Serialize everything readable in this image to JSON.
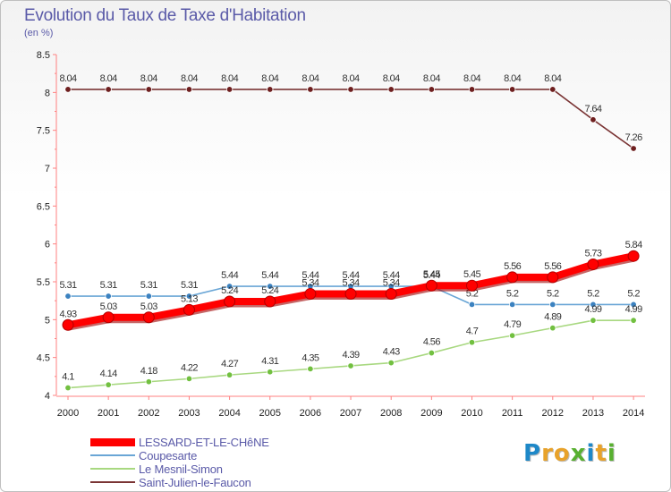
{
  "title": "Evolution du Taux de Taxe d'Habitation",
  "subtitle": "(en %)",
  "logo": {
    "letters": [
      "P",
      "r",
      "o",
      "x",
      "i",
      "t",
      "i"
    ],
    "colors": [
      "#1e88c8",
      "#e8a22a",
      "#e8a22a",
      "#58b030",
      "#1e88c8",
      "#e8a22a",
      "#58b030"
    ]
  },
  "chart_data": {
    "type": "line",
    "x": [
      "2000",
      "2001",
      "2002",
      "2003",
      "2004",
      "2005",
      "2006",
      "2007",
      "2008",
      "2009",
      "2010",
      "2011",
      "2012",
      "2013",
      "2014"
    ],
    "ylim": [
      4,
      8.5
    ],
    "yticks": [
      "4",
      "4.5",
      "5",
      "5.5",
      "6",
      "6.5",
      "7",
      "7.5",
      "8",
      "8.5"
    ],
    "grid": false,
    "legend_position": "bottom-left",
    "series": [
      {
        "name": "Saint-Julien-le-Faucon",
        "color": "#7a3434",
        "dot": "#6e1f1f",
        "values": [
          8.04,
          8.04,
          8.04,
          8.04,
          8.04,
          8.04,
          8.04,
          8.04,
          8.04,
          8.04,
          8.04,
          8.04,
          8.04,
          7.64,
          7.26
        ],
        "labels": [
          "8.04",
          "8.04",
          "8.04",
          "8.04",
          "8.04",
          "8.04",
          "8.04",
          "8.04",
          "8.04",
          "8.04",
          "8.04",
          "8.04",
          "8.04",
          "7.64",
          "7.26"
        ]
      },
      {
        "name": "Coupesarte",
        "color": "#6aa6d6",
        "dot": "#3c82c0",
        "values": [
          5.31,
          5.31,
          5.31,
          5.31,
          5.44,
          5.44,
          5.44,
          5.44,
          5.44,
          5.44,
          5.2,
          5.2,
          5.2,
          5.2,
          5.2
        ],
        "labels": [
          "5.31",
          "5.31",
          "5.31",
          "5.31",
          "5.44",
          "5.44",
          "5.44",
          "5.44",
          "5.44",
          "5.44",
          "5.2",
          "5.2",
          "5.2",
          "5.2",
          "5.2"
        ]
      },
      {
        "name": "Le Mesnil-Simon",
        "color": "#a8d880",
        "dot": "#72c040",
        "values": [
          4.1,
          4.14,
          4.18,
          4.22,
          4.27,
          4.31,
          4.35,
          4.39,
          4.43,
          4.56,
          4.7,
          4.79,
          4.89,
          4.99,
          4.99
        ],
        "labels": [
          "4.1",
          "4.14",
          "4.18",
          "4.22",
          "4.27",
          "4.31",
          "4.35",
          "4.39",
          "4.43",
          "4.56",
          "4.7",
          "4.79",
          "4.89",
          "4.99",
          "4.99"
        ]
      },
      {
        "name": "LESSARD-ET-LE-CHêNE",
        "color": "#ff0000",
        "dot": "#ff0000",
        "values": [
          4.93,
          5.03,
          5.03,
          5.13,
          5.24,
          5.24,
          5.34,
          5.34,
          5.34,
          5.45,
          5.45,
          5.56,
          5.56,
          5.73,
          5.84
        ],
        "labels": [
          "4.93",
          "5.03",
          "5.03",
          "5.13",
          "5.24",
          "5.24",
          "5.34",
          "5.34",
          "5.34",
          "5.45",
          "5.45",
          "5.56",
          "5.56",
          "5.73",
          "5.84"
        ]
      }
    ],
    "legend_order": [
      3,
      1,
      2,
      0
    ]
  }
}
